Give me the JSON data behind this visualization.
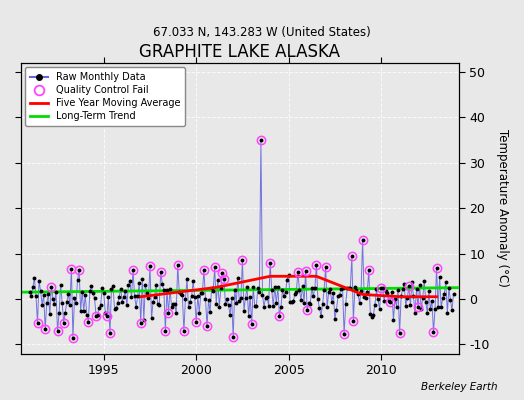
{
  "title": "GRAPHITE LAKE ALASKA",
  "subtitle": "67.033 N, 143.283 W (United States)",
  "ylabel": "Temperature Anomaly (°C)",
  "watermark": "Berkeley Earth",
  "ylim": [
    -12,
    52
  ],
  "yticks": [
    -10,
    0,
    10,
    20,
    30,
    40,
    50
  ],
  "xlim_start": 1990.5,
  "xlim_end": 2014.2,
  "xticks": [
    1995,
    2000,
    2005,
    2010
  ],
  "bg_color": "#e8e8e8",
  "plot_bg_color": "#e8e8e8",
  "raw_line_color": "#6666dd",
  "raw_dot_color": "#000000",
  "qc_fail_color": "#ff44ff",
  "moving_avg_color": "#ff0000",
  "trend_color": "#00dd00",
  "seed": 42,
  "n_months": 276,
  "start_year": 1991.0
}
